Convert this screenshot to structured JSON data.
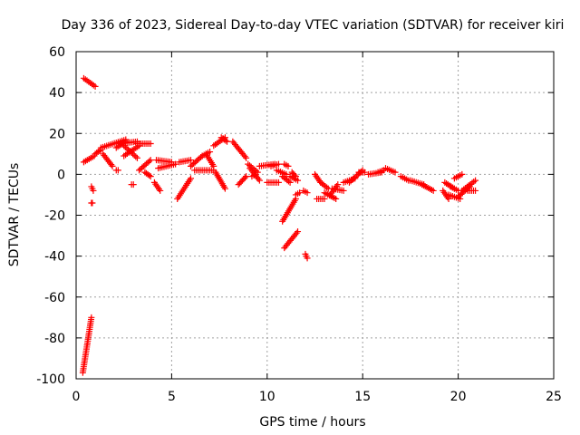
{
  "chart_data": {
    "type": "scatter",
    "title": "Day 336 of 2023, Sidereal Day-to-day VTEC variation (SDTVAR) for receiver kiri",
    "xlabel": "GPS time / hours",
    "ylabel": "SDTVAR / TECUs",
    "xlim": [
      0,
      25
    ],
    "ylim": [
      -100,
      60
    ],
    "xticks": [
      0,
      5,
      10,
      15,
      20,
      25
    ],
    "yticks": [
      -100,
      -80,
      -60,
      -40,
      -20,
      0,
      20,
      40,
      60
    ],
    "x_tick_labels": [
      "0",
      "5",
      "10",
      "15",
      "20",
      "25"
    ],
    "y_tick_labels": [
      "-100",
      "-80",
      "-60",
      "-40",
      "-20",
      "0",
      "20",
      "40",
      "60"
    ],
    "grid": true,
    "marker": "plus",
    "marker_color": "#ff0000",
    "segments": [
      {
        "start": [
          0.35,
          -97
        ],
        "end": [
          0.8,
          -70
        ]
      },
      {
        "start": [
          0.4,
          47
        ],
        "end": [
          1.0,
          43
        ]
      },
      {
        "start": [
          0.4,
          6
        ],
        "end": [
          0.95,
          9
        ]
      },
      {
        "start": [
          0.8,
          -6
        ],
        "end": [
          0.9,
          -8
        ]
      },
      {
        "start": [
          0.8,
          -14
        ],
        "end": [
          0.85,
          -14
        ]
      },
      {
        "start": [
          1.0,
          10
        ],
        "end": [
          1.3,
          12
        ]
      },
      {
        "start": [
          1.3,
          13
        ],
        "end": [
          2.6,
          17
        ]
      },
      {
        "start": [
          1.4,
          10
        ],
        "end": [
          1.9,
          4
        ]
      },
      {
        "start": [
          2.1,
          2
        ],
        "end": [
          2.2,
          2
        ]
      },
      {
        "start": [
          2.1,
          13
        ],
        "end": [
          2.6,
          16
        ]
      },
      {
        "start": [
          2.3,
          15
        ],
        "end": [
          3.2,
          16
        ]
      },
      {
        "start": [
          2.5,
          9
        ],
        "end": [
          3.3,
          14
        ]
      },
      {
        "start": [
          2.5,
          14
        ],
        "end": [
          3.2,
          8
        ]
      },
      {
        "start": [
          2.9,
          -5
        ],
        "end": [
          3.0,
          -5
        ]
      },
      {
        "start": [
          3.2,
          15
        ],
        "end": [
          3.9,
          15
        ]
      },
      {
        "start": [
          3.3,
          2
        ],
        "end": [
          3.9,
          7
        ]
      },
      {
        "start": [
          3.6,
          1
        ],
        "end": [
          3.9,
          -1
        ]
      },
      {
        "start": [
          4.1,
          -4
        ],
        "end": [
          4.4,
          -8
        ]
      },
      {
        "start": [
          4.2,
          7
        ],
        "end": [
          5.0,
          6
        ]
      },
      {
        "start": [
          4.3,
          3
        ],
        "end": [
          5.2,
          5
        ]
      },
      {
        "start": [
          5.3,
          -12
        ],
        "end": [
          6.0,
          -2
        ]
      },
      {
        "start": [
          5.4,
          6
        ],
        "end": [
          6.0,
          7
        ]
      },
      {
        "start": [
          6.0,
          4
        ],
        "end": [
          6.6,
          9
        ]
      },
      {
        "start": [
          6.2,
          2
        ],
        "end": [
          7.2,
          2
        ]
      },
      {
        "start": [
          6.6,
          9
        ],
        "end": [
          7.0,
          11
        ]
      },
      {
        "start": [
          6.8,
          10
        ],
        "end": [
          7.2,
          4
        ]
      },
      {
        "start": [
          7.2,
          14
        ],
        "end": [
          7.8,
          18
        ]
      },
      {
        "start": [
          7.3,
          1
        ],
        "end": [
          7.8,
          -7
        ]
      },
      {
        "start": [
          7.6,
          18
        ],
        "end": [
          7.9,
          16
        ]
      },
      {
        "start": [
          8.2,
          16
        ],
        "end": [
          8.9,
          8
        ]
      },
      {
        "start": [
          8.5,
          -5
        ],
        "end": [
          8.9,
          -1
        ]
      },
      {
        "start": [
          9.0,
          5
        ],
        "end": [
          9.5,
          1
        ]
      },
      {
        "start": [
          9.1,
          3
        ],
        "end": [
          9.6,
          -3
        ]
      },
      {
        "start": [
          9.2,
          -1
        ],
        "end": [
          9.4,
          0
        ]
      },
      {
        "start": [
          9.6,
          4
        ],
        "end": [
          10.4,
          5
        ]
      },
      {
        "start": [
          10.0,
          -4
        ],
        "end": [
          10.6,
          -4
        ]
      },
      {
        "start": [
          10.2,
          4
        ],
        "end": [
          10.6,
          5
        ]
      },
      {
        "start": [
          10.5,
          2
        ],
        "end": [
          11.0,
          0
        ]
      },
      {
        "start": [
          10.8,
          -1
        ],
        "end": [
          11.2,
          -4
        ]
      },
      {
        "start": [
          10.8,
          -23
        ],
        "end": [
          11.5,
          -12
        ]
      },
      {
        "start": [
          10.9,
          -36
        ],
        "end": [
          11.6,
          -28
        ]
      },
      {
        "start": [
          10.9,
          5
        ],
        "end": [
          11.1,
          4
        ]
      },
      {
        "start": [
          11.2,
          -1
        ],
        "end": [
          11.6,
          -3
        ]
      },
      {
        "start": [
          11.3,
          1
        ],
        "end": [
          11.5,
          -1
        ]
      },
      {
        "start": [
          11.5,
          -10
        ],
        "end": [
          11.7,
          -9
        ]
      },
      {
        "start": [
          11.9,
          -8
        ],
        "end": [
          12.1,
          -9
        ]
      },
      {
        "start": [
          12.0,
          -39
        ],
        "end": [
          12.1,
          -41
        ]
      },
      {
        "start": [
          12.5,
          0
        ],
        "end": [
          12.8,
          -4
        ]
      },
      {
        "start": [
          12.6,
          -12
        ],
        "end": [
          13.0,
          -12
        ]
      },
      {
        "start": [
          12.8,
          -4
        ],
        "end": [
          13.2,
          -7
        ]
      },
      {
        "start": [
          13.0,
          -9
        ],
        "end": [
          13.6,
          -12
        ]
      },
      {
        "start": [
          13.3,
          -10
        ],
        "end": [
          13.7,
          -5
        ]
      },
      {
        "start": [
          13.4,
          -7
        ],
        "end": [
          14.0,
          -8
        ]
      },
      {
        "start": [
          14.0,
          -4
        ],
        "end": [
          14.6,
          -2
        ]
      },
      {
        "start": [
          14.3,
          -4
        ],
        "end": [
          15.0,
          2
        ]
      },
      {
        "start": [
          14.8,
          1
        ],
        "end": [
          15.1,
          1
        ]
      },
      {
        "start": [
          15.3,
          0
        ],
        "end": [
          16.0,
          1
        ]
      },
      {
        "start": [
          15.8,
          1
        ],
        "end": [
          16.1,
          2
        ]
      },
      {
        "start": [
          16.2,
          3
        ],
        "end": [
          16.7,
          1
        ]
      },
      {
        "start": [
          17.0,
          -1
        ],
        "end": [
          17.4,
          -3
        ]
      },
      {
        "start": [
          17.5,
          -3
        ],
        "end": [
          18.2,
          -5
        ]
      },
      {
        "start": [
          18.1,
          -5
        ],
        "end": [
          18.7,
          -8
        ]
      },
      {
        "start": [
          19.2,
          -8
        ],
        "end": [
          19.5,
          -12
        ]
      },
      {
        "start": [
          19.3,
          -4
        ],
        "end": [
          19.8,
          -7
        ]
      },
      {
        "start": [
          19.5,
          -10
        ],
        "end": [
          20.1,
          -12
        ]
      },
      {
        "start": [
          19.6,
          -6
        ],
        "end": [
          20.0,
          -8
        ]
      },
      {
        "start": [
          19.8,
          -2
        ],
        "end": [
          20.2,
          0
        ]
      },
      {
        "start": [
          20.0,
          -11
        ],
        "end": [
          20.6,
          -6
        ]
      },
      {
        "start": [
          20.2,
          -8
        ],
        "end": [
          20.9,
          -3
        ]
      },
      {
        "start": [
          20.5,
          -8
        ],
        "end": [
          20.9,
          -8
        ]
      }
    ]
  }
}
